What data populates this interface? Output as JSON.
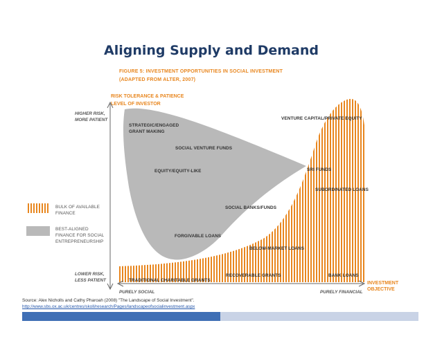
{
  "slide": {
    "title": "Aligning Supply and Demand"
  },
  "figure": {
    "caption_line1": "FIGURE 5: INVESTMENT OPPORTUNITIES IN SOCIAL INVESTMENT",
    "caption_line2": "(ADAPTED FROM ALTER, 2007)",
    "y_axis_title_line1": "RISK TOLERANCE & PATIENCE",
    "y_axis_title_line2": "LEVEL OF INVESTOR",
    "y_top_line1": "HIGHER RISK,",
    "y_top_line2": "MORE PATIENT",
    "y_bottom_line1": "LOWER RISK,",
    "y_bottom_line2": "LESS PATIENT",
    "x_left": "PURELY SOCIAL",
    "x_right": "PURELY FINANCIAL",
    "x_axis_title_line1": "INVESTMENT",
    "x_axis_title_line2": "OBJECTIVE",
    "legend": {
      "bulk_line1": "BULK OF AVAILABLE",
      "bulk_line2": "FINANCE",
      "aligned_line1": "BEST-ALIGNED",
      "aligned_line2": "FINANCE FOR SOCIAL",
      "aligned_line3": "ENTREPRENEURSHIP"
    },
    "labels": {
      "strategic_line1": "STRATEGIC/ENGAGED",
      "strategic_line2": "GRANT MAKING",
      "venture_funds": "SOCIAL VENTURE FUNDS",
      "equity": "EQUITY/EQUITY-LIKE",
      "venture_capital": "VENTURE CAPITAL/PRIVATE EQUITY",
      "sri_funds": "SRI FUNDS",
      "subordinated": "SUBORDINATED LOANS",
      "social_banks": "SOCIAL BANKS/FUNDS",
      "forgivable": "FORGIVABLE LOANS",
      "below_market": "BELOW-MARKET LOANS",
      "recoverable": "RECOVERABLE GRANTS",
      "bank_loans": "BANK LOANS",
      "traditional": "TRADITIONAL CHARITABLE GRANTS"
    },
    "colors": {
      "orange": "#e8861e",
      "grey_region": "#b9b9b9",
      "axis": "#666666"
    }
  },
  "source": {
    "line1": "Source: Alex Nicholls and Cathy Pharoah (2008) \"The Landscape of Social Investment\".",
    "line2": "http://www.sbs.ox.ac.uk/centres/skoll/research/Pages/landscapeofsocialinvestment.aspx"
  },
  "footer": {
    "bar_color": "#3f6fb5",
    "bar_light_color": "#c9d3e6"
  }
}
